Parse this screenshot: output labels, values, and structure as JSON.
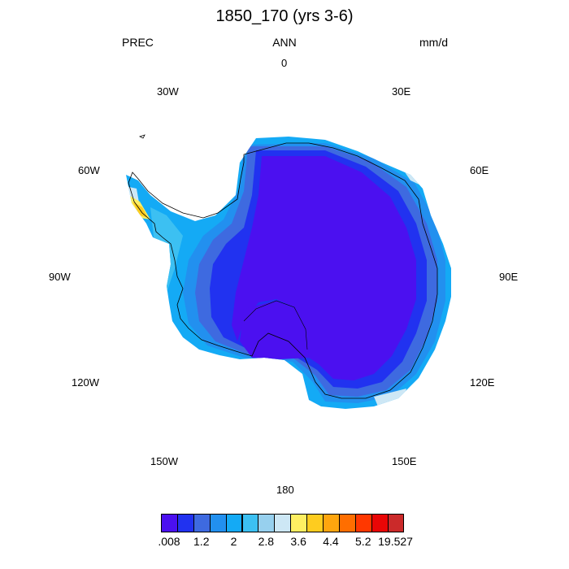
{
  "title": "1850_170 (yrs 3-6)",
  "header": {
    "left": "PREC",
    "center": "ANN",
    "right": "mm/d"
  },
  "longitude_labels": [
    "0",
    "30E",
    "60E",
    "90E",
    "120E",
    "150E",
    "180",
    "150W",
    "120W",
    "90W",
    "60W",
    "30W"
  ],
  "colorbar": {
    "colors": [
      "#4b10f0",
      "#2132f0",
      "#3e6ae0",
      "#2290ef",
      "#14aaf5",
      "#3cc0f2",
      "#97d0ee",
      "#cde7f5",
      "#ffef62",
      "#fecc1f",
      "#fea50e",
      "#ff6e00",
      "#ff3800",
      "#e90606",
      "#cb2a2a"
    ],
    "labels": [
      ".008",
      "1.2",
      "2",
      "2.8",
      "3.6",
      "4.4",
      "5.2",
      "19.527"
    ]
  },
  "legend_label_slots": [
    0,
    2,
    4,
    6,
    8,
    10,
    12,
    14
  ],
  "map_colors": {
    "interior": "#4b10f0",
    "ring1": "#2132f0",
    "ring2": "#3e6ae0",
    "ring3": "#2290ef",
    "coast": "#14aaf5",
    "coast_light": "#3cc0f2",
    "pale": "#cde7f5",
    "peninsula_yellow": "#ffef62",
    "peninsula_orange": "#fecc1f"
  }
}
